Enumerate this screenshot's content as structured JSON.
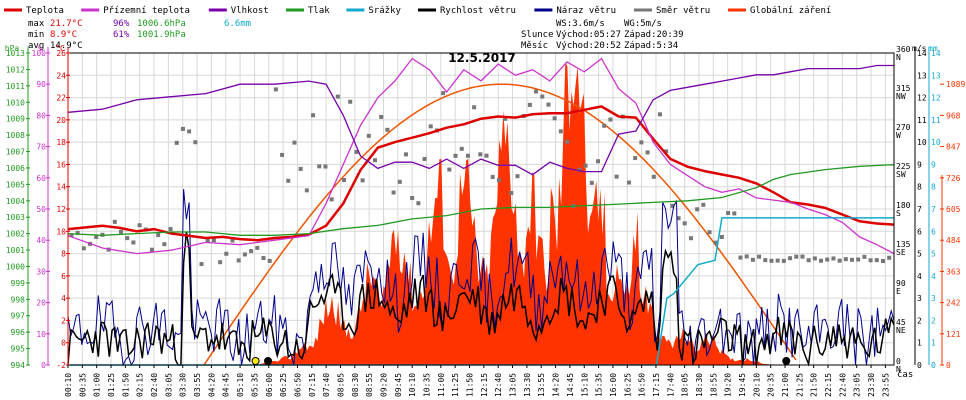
{
  "legend": [
    {
      "label": "Teplota",
      "color": "#dd0000"
    },
    {
      "label": "Přízemní teplota",
      "color": "#cc33cc"
    },
    {
      "label": "Vlhkost",
      "color": "#7700aa"
    },
    {
      "label": "Tlak",
      "color": "#229922"
    },
    {
      "label": "Srážky",
      "color": "#11aacc"
    },
    {
      "label": "Rychlost větru",
      "color": "#000000"
    },
    {
      "label": "Náraz větru",
      "color": "#000088"
    },
    {
      "label": "Směr větru",
      "color": "#777777"
    },
    {
      "label": "Globální záření",
      "color": "#ff3300"
    }
  ],
  "stats": {
    "max_label": "max",
    "max_temp": "21.7°C",
    "max_hum": "96%",
    "max_press": "1006.6hPa",
    "max_rain": "6.6mm",
    "min_label": "min",
    "min_temp": "8.9°C",
    "min_hum": "61%",
    "min_press": "1001.9hPa",
    "avg_label": "avg",
    "avg_temp": "14.9°C"
  },
  "info": {
    "ws": "WS:3.6m/s",
    "wg": "WG:5m/s",
    "sun_label": "Slunce",
    "sun_rise": "Východ:05:27",
    "sun_set": "Západ:20:39",
    "moon_label": "Měsíc",
    "moon_rise": "Východ:20:52",
    "moon_set": "Západ:5:34"
  },
  "chart_data": {
    "type": "line",
    "title": "12.5.2017",
    "xlabel": "čas",
    "x_ticks": [
      "00:10",
      "00:35",
      "01:00",
      "01:25",
      "01:50",
      "02:15",
      "02:40",
      "03:05",
      "03:30",
      "03:55",
      "04:20",
      "04:45",
      "05:10",
      "05:35",
      "06:00",
      "06:25",
      "06:50",
      "07:15",
      "07:40",
      "08:05",
      "08:30",
      "08:55",
      "09:20",
      "09:45",
      "10:10",
      "10:35",
      "11:00",
      "11:25",
      "11:50",
      "12:15",
      "12:40",
      "13:05",
      "13:30",
      "13:55",
      "14:20",
      "14:45",
      "15:10",
      "15:35",
      "16:00",
      "16:25",
      "16:50",
      "17:15",
      "17:40",
      "18:05",
      "18:30",
      "18:55",
      "19:20",
      "19:45",
      "20:10",
      "20:35",
      "21:00",
      "21:25",
      "21:50",
      "22:15",
      "22:40",
      "23:05",
      "23:30",
      "23:55"
    ],
    "axes": {
      "pressure": {
        "unit": "hPa",
        "min": 994,
        "max": 1013,
        "ticks": [
          "994",
          "995",
          "996",
          "997",
          "998",
          "999",
          "1000",
          "1001",
          "1002",
          "1003",
          "1004",
          "1005",
          "1006",
          "1007",
          "1008",
          "1009",
          "1010",
          "1011",
          "1012",
          "1013"
        ]
      },
      "humidity": {
        "unit": "%",
        "min": 0,
        "max": 100,
        "ticks": [
          "0",
          "10",
          "20",
          "30",
          "40",
          "50",
          "60",
          "70",
          "80",
          "90",
          "100"
        ]
      },
      "temperature": {
        "unit": "°C",
        "min": -2,
        "max": 26,
        "ticks": [
          "-2",
          "0",
          "2",
          "4",
          "6",
          "8",
          "10",
          "12",
          "14",
          "16",
          "18",
          "20",
          "22",
          "24",
          "26"
        ]
      },
      "direction": {
        "ticks": [
          {
            "deg": "0",
            "dir": "N"
          },
          {
            "deg": "45",
            "dir": "NE"
          },
          {
            "deg": "90",
            "dir": "E"
          },
          {
            "deg": "135",
            "dir": "SE"
          },
          {
            "deg": "180",
            "dir": "S"
          },
          {
            "deg": "225",
            "dir": "SW"
          },
          {
            "deg": "270",
            "dir": "W"
          },
          {
            "deg": "315",
            "dir": "NW"
          },
          {
            "deg": "360",
            "dir": "N"
          }
        ]
      },
      "wind": {
        "unit": "m/s",
        "min": 0,
        "max": 14,
        "ticks": [
          "0",
          "1",
          "2",
          "3",
          "4",
          "5",
          "6",
          "7",
          "8",
          "9",
          "10",
          "11",
          "12",
          "13",
          "14"
        ]
      },
      "rain": {
        "unit": "mm",
        "min": 0,
        "max": 14
      },
      "radiation": {
        "min": 0,
        "max": 1210,
        "ticks": [
          "0",
          "121",
          "242",
          "363",
          "484",
          "605",
          "726",
          "847",
          "968",
          "1089"
        ]
      }
    },
    "series": [
      {
        "name": "Teplota",
        "axis": "temperature",
        "points": [
          [
            0,
            10.2
          ],
          [
            1,
            10.5
          ],
          [
            1.5,
            10.3
          ],
          [
            2,
            10.0
          ],
          [
            2.5,
            10.2
          ],
          [
            3,
            9.8
          ],
          [
            3.5,
            9.6
          ],
          [
            4,
            9.4
          ],
          [
            4.5,
            9.5
          ],
          [
            5,
            9.3
          ],
          [
            5.5,
            9.2
          ],
          [
            6,
            9.4
          ],
          [
            6.5,
            9.5
          ],
          [
            7,
            9.7
          ],
          [
            7.5,
            10.5
          ],
          [
            8,
            12.5
          ],
          [
            8.5,
            15.5
          ],
          [
            9,
            17.5
          ],
          [
            9.5,
            18.0
          ],
          [
            10,
            18.4
          ],
          [
            10.5,
            18.8
          ],
          [
            11,
            19.3
          ],
          [
            11.5,
            19.6
          ],
          [
            12,
            20.1
          ],
          [
            12.5,
            20.3
          ],
          [
            13,
            20.2
          ],
          [
            13.5,
            20.5
          ],
          [
            14,
            20.6
          ],
          [
            14.5,
            20.6
          ],
          [
            15,
            20.9
          ],
          [
            15.5,
            21.2
          ],
          [
            16,
            20.3
          ],
          [
            16.5,
            20.2
          ],
          [
            17,
            18.3
          ],
          [
            17.5,
            16.5
          ],
          [
            18,
            15.8
          ],
          [
            18.5,
            15.4
          ],
          [
            19,
            15.1
          ],
          [
            19.5,
            14.8
          ],
          [
            20,
            14.3
          ],
          [
            20.5,
            13.5
          ],
          [
            21,
            12.6
          ],
          [
            21.5,
            12.4
          ],
          [
            22,
            12.1
          ],
          [
            22.5,
            11.5
          ],
          [
            23,
            10.9
          ],
          [
            23.5,
            10.7
          ],
          [
            24,
            10.6
          ]
        ]
      },
      {
        "name": "Přízemní teplota",
        "axis": "temperature",
        "points": [
          [
            0,
            9.6
          ],
          [
            1,
            8.5
          ],
          [
            2,
            8.0
          ],
          [
            3,
            8.3
          ],
          [
            4,
            9.0
          ],
          [
            5,
            8.8
          ],
          [
            6,
            9.2
          ],
          [
            7,
            9.6
          ],
          [
            7.5,
            12.5
          ],
          [
            8,
            16.0
          ],
          [
            8.5,
            19.5
          ],
          [
            9,
            22.0
          ],
          [
            9.5,
            23.5
          ],
          [
            10,
            25.5
          ],
          [
            10.5,
            24.5
          ],
          [
            11,
            22.5
          ],
          [
            11.5,
            24.5
          ],
          [
            12,
            23.5
          ],
          [
            12.5,
            25.0
          ],
          [
            13,
            24.0
          ],
          [
            13.5,
            24.5
          ],
          [
            14,
            23.5
          ],
          [
            14.5,
            25.2
          ],
          [
            15,
            24.3
          ],
          [
            15.5,
            25.5
          ],
          [
            16,
            22.8
          ],
          [
            16.5,
            21.5
          ],
          [
            17,
            18.0
          ],
          [
            17.5,
            16.0
          ],
          [
            18,
            15.0
          ],
          [
            18.5,
            14.0
          ],
          [
            19,
            13.5
          ],
          [
            19.5,
            13.8
          ],
          [
            20,
            13.0
          ],
          [
            20.5,
            12.8
          ],
          [
            21,
            12.6
          ],
          [
            21.5,
            12.0
          ],
          [
            22,
            11.5
          ],
          [
            22.5,
            10.8
          ],
          [
            23,
            9.5
          ],
          [
            23.5,
            8.8
          ],
          [
            24,
            8.0
          ]
        ]
      },
      {
        "name": "Vlhkost",
        "axis": "humidity",
        "points": [
          [
            0,
            81
          ],
          [
            1,
            82
          ],
          [
            2,
            85
          ],
          [
            3,
            86
          ],
          [
            4,
            87
          ],
          [
            5,
            90
          ],
          [
            6,
            90
          ],
          [
            7,
            91
          ],
          [
            7.5,
            90
          ],
          [
            8,
            80
          ],
          [
            8.5,
            67
          ],
          [
            9,
            63
          ],
          [
            9.5,
            65
          ],
          [
            10,
            65
          ],
          [
            10.5,
            63
          ],
          [
            11,
            66
          ],
          [
            11.5,
            63
          ],
          [
            12,
            66
          ],
          [
            12.5,
            64
          ],
          [
            13,
            64
          ],
          [
            13.5,
            61
          ],
          [
            14,
            65
          ],
          [
            14.5,
            63
          ],
          [
            15,
            62
          ],
          [
            15.5,
            62
          ],
          [
            16,
            74
          ],
          [
            16.5,
            75
          ],
          [
            17,
            85
          ],
          [
            17.5,
            88
          ],
          [
            18,
            89
          ],
          [
            18.5,
            90
          ],
          [
            19,
            91
          ],
          [
            19.5,
            92
          ],
          [
            20,
            93
          ],
          [
            20.5,
            93
          ],
          [
            21,
            94
          ],
          [
            21.5,
            95
          ],
          [
            22,
            95
          ],
          [
            22.5,
            95
          ],
          [
            23,
            95
          ],
          [
            23.5,
            96
          ],
          [
            24,
            96
          ]
        ]
      },
      {
        "name": "Tlak",
        "axis": "pressure",
        "points": [
          [
            0,
            1002.0
          ],
          [
            1,
            1001.9
          ],
          [
            2,
            1002.0
          ],
          [
            3,
            1002.1
          ],
          [
            4,
            1002.1
          ],
          [
            5,
            1001.9
          ],
          [
            6,
            1001.9
          ],
          [
            7,
            1002.0
          ],
          [
            8,
            1002.3
          ],
          [
            9,
            1002.5
          ],
          [
            10,
            1002.9
          ],
          [
            11,
            1003.1
          ],
          [
            12,
            1003.5
          ],
          [
            13,
            1003.6
          ],
          [
            14,
            1003.6
          ],
          [
            15,
            1003.7
          ],
          [
            16,
            1003.8
          ],
          [
            17,
            1003.9
          ],
          [
            18,
            1004.0
          ],
          [
            19,
            1004.2
          ],
          [
            20,
            1004.8
          ],
          [
            20.5,
            1005.3
          ],
          [
            21,
            1005.6
          ],
          [
            22,
            1005.9
          ],
          [
            23,
            1006.1
          ],
          [
            24,
            1006.2
          ]
        ]
      },
      {
        "name": "Srážky",
        "axis": "rain",
        "points": [
          [
            0,
            0
          ],
          [
            17.1,
            0
          ],
          [
            17.4,
            3
          ],
          [
            17.6,
            3.2
          ],
          [
            18.3,
            4.5
          ],
          [
            18.8,
            4.7
          ],
          [
            19.0,
            6.6
          ],
          [
            24,
            6.6
          ]
        ]
      }
    ],
    "radiation": {
      "name": "Globální záření",
      "axis": "radiation",
      "sunrise_hour": 5.45,
      "sunset_hour": 20.65,
      "peak": 1089
    }
  }
}
